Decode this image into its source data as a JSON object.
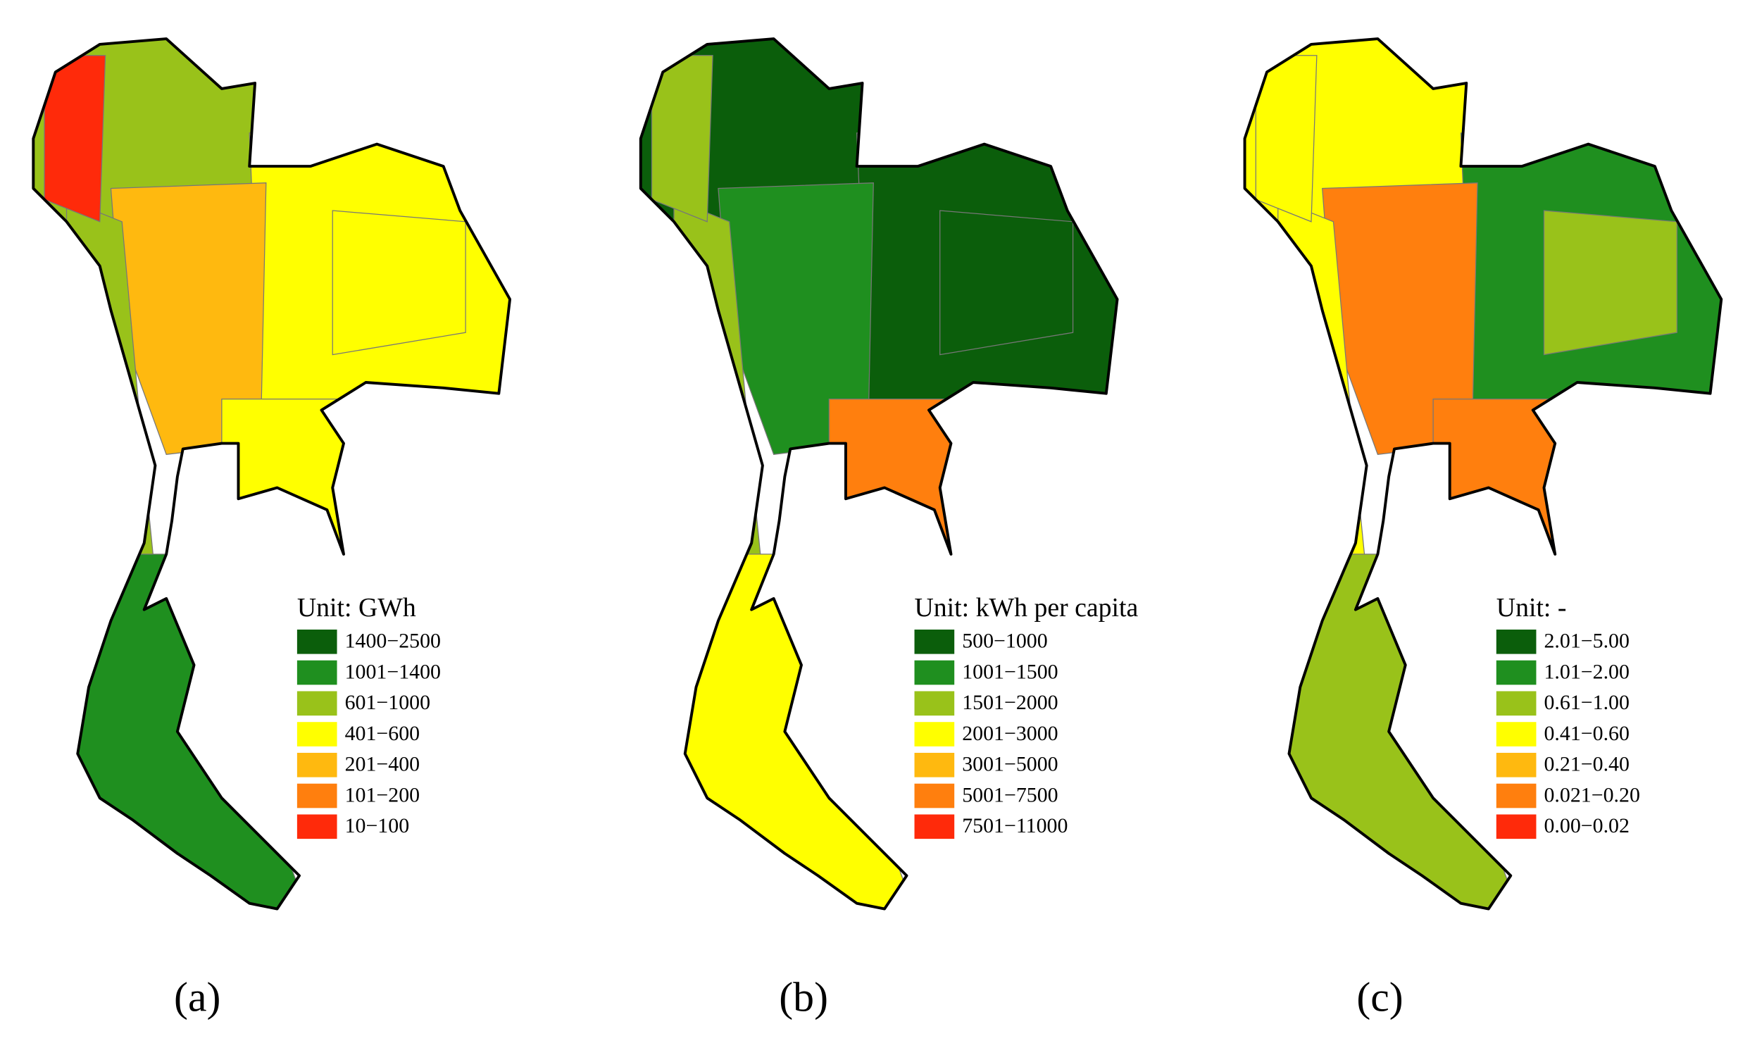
{
  "panels": [
    {
      "caption": "(a)",
      "legend": {
        "title": "Unit:  GWh",
        "items": [
          {
            "label": "1400−2500",
            "color": "#0b5e0b"
          },
          {
            "label": "1001−1400",
            "color": "#1f8f1f"
          },
          {
            "label": "601−1000",
            "color": "#99c21a"
          },
          {
            "label": "401−600",
            "color": "#ffff00"
          },
          {
            "label": "201−400",
            "color": "#ffb90f"
          },
          {
            "label": "101−200",
            "color": "#ff7f0e"
          },
          {
            "label": "10−100",
            "color": "#ff2a0a"
          }
        ]
      }
    },
    {
      "caption": "(b)",
      "legend": {
        "title": "Unit:  kWh per capita",
        "items": [
          {
            "label": "500−1000",
            "color": "#0b5e0b"
          },
          {
            "label": "1001−1500",
            "color": "#1f8f1f"
          },
          {
            "label": "1501−2000",
            "color": "#99c21a"
          },
          {
            "label": "2001−3000",
            "color": "#ffff00"
          },
          {
            "label": "3001−5000",
            "color": "#ffb90f"
          },
          {
            "label": "5001−7500",
            "color": "#ff7f0e"
          },
          {
            "label": "7501−11000",
            "color": "#ff2a0a"
          }
        ]
      }
    },
    {
      "caption": "(c)",
      "legend": {
        "title": "Unit:  -",
        "items": [
          {
            "label": "2.01−5.00",
            "color": "#0b5e0b"
          },
          {
            "label": "1.01−2.00",
            "color": "#1f8f1f"
          },
          {
            "label": "0.61−1.00",
            "color": "#99c21a"
          },
          {
            "label": "0.41−0.60",
            "color": "#ffff00"
          },
          {
            "label": "0.21−0.40",
            "color": "#ffb90f"
          },
          {
            "label": "0.021−0.20",
            "color": "#ff7f0e"
          },
          {
            "label": "0.00−0.02",
            "color": "#ff2a0a"
          }
        ]
      }
    }
  ]
}
